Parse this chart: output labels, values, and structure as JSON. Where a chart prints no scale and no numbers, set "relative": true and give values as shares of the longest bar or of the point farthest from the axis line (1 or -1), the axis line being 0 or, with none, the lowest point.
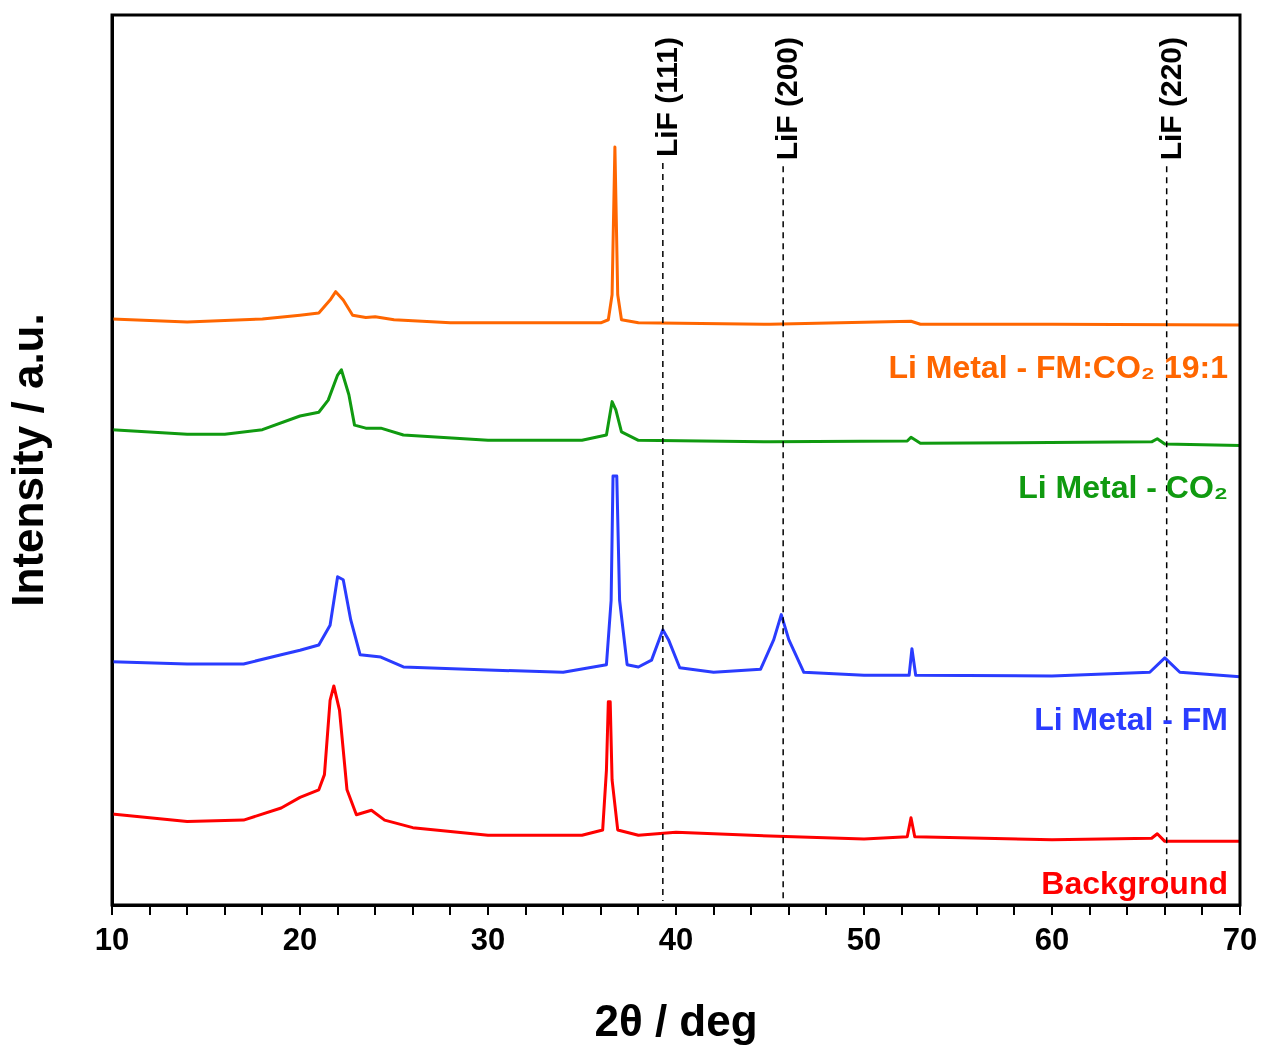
{
  "chart_data": {
    "type": "line",
    "xlabel": "2θ / deg",
    "ylabel": "Intensity / a.u.",
    "relative": true,
    "legend": false,
    "marker": "none",
    "line_style": "solid",
    "xlim": [
      10,
      70
    ],
    "xticks": [
      10,
      {
        "value": 12,
        "label": null
      },
      {
        "value": 14,
        "label": null
      },
      {
        "value": 16,
        "label": null
      },
      {
        "value": 18,
        "label": null
      },
      20,
      {
        "value": 22,
        "label": null
      },
      {
        "value": 24,
        "label": null
      },
      {
        "value": 26,
        "label": null
      },
      {
        "value": 28,
        "label": null
      },
      30,
      {
        "value": 32,
        "label": null
      },
      {
        "value": 34,
        "label": null
      },
      {
        "value": 36,
        "label": null
      },
      {
        "value": 38,
        "label": null
      },
      40,
      {
        "value": 42,
        "label": null
      },
      {
        "value": 44,
        "label": null
      },
      {
        "value": 46,
        "label": null
      },
      {
        "value": 48,
        "label": null
      },
      50,
      {
        "value": 52,
        "label": null
      },
      {
        "value": 54,
        "label": null
      },
      {
        "value": 56,
        "label": null
      },
      {
        "value": 58,
        "label": null
      },
      60,
      {
        "value": 62,
        "label": null
      },
      {
        "value": 64,
        "label": null
      },
      {
        "value": 66,
        "label": null
      },
      {
        "value": 68,
        "label": null
      },
      70
    ],
    "ref_lines": [
      {
        "axis": "x",
        "value": 39.3,
        "label": "LiF (111)",
        "color": "#000000",
        "line_style": "dashed"
      },
      {
        "axis": "x",
        "value": 45.7,
        "label": "LiF (200)",
        "color": "#000000",
        "line_style": "dashed"
      },
      {
        "axis": "x",
        "value": 66.1,
        "label": "LiF (220)",
        "color": "#000000",
        "line_style": "dashed"
      }
    ],
    "series": [
      {
        "name": "Li Metal - FM:CO₂ 19:1",
        "color": "#ff6600",
        "x": [
          10,
          14,
          18,
          20,
          21,
          21.6,
          21.9,
          22.3,
          22.8,
          23.5,
          24,
          25,
          28,
          32,
          36,
          36.4,
          36.6,
          36.75,
          36.9,
          37.1,
          38,
          45,
          52.5,
          53,
          60,
          70
        ],
        "values": [
          0.773,
          0.769,
          0.773,
          0.778,
          0.781,
          0.798,
          0.809,
          0.798,
          0.778,
          0.775,
          0.776,
          0.772,
          0.768,
          0.768,
          0.768,
          0.772,
          0.805,
          1,
          0.805,
          0.772,
          0.768,
          0.766,
          0.77,
          0.766,
          0.766,
          0.765
        ]
      },
      {
        "name": "Li Metal - CO₂",
        "color": "#109a10",
        "x": [
          10,
          14,
          16,
          18,
          20,
          21,
          21.5,
          22,
          22.2,
          22.6,
          22.9,
          23.5,
          24.3,
          25.5,
          30,
          35,
          36.3,
          36.6,
          36.8,
          37.1,
          38,
          45,
          52.3,
          52.5,
          53,
          65.3,
          65.6,
          66,
          70
        ],
        "values": [
          0.627,
          0.621,
          0.621,
          0.627,
          0.645,
          0.65,
          0.666,
          0.699,
          0.706,
          0.673,
          0.633,
          0.629,
          0.629,
          0.62,
          0.613,
          0.613,
          0.62,
          0.664,
          0.653,
          0.624,
          0.613,
          0.611,
          0.612,
          0.617,
          0.609,
          0.611,
          0.615,
          0.608,
          0.606
        ]
      },
      {
        "name": "Li Metal - FM",
        "color": "#2a3cff",
        "x": [
          10,
          14,
          17,
          19,
          20,
          21,
          21.6,
          22,
          22.3,
          22.7,
          23.2,
          24.3,
          25.5,
          30,
          34,
          36.3,
          36.55,
          36.65,
          36.85,
          37,
          37.4,
          38,
          38.7,
          39.3,
          39.6,
          40.2,
          42,
          44.5,
          45.2,
          45.6,
          46,
          46.8,
          50,
          52.4,
          52.55,
          52.75,
          60,
          65.2,
          66,
          66.8,
          70
        ],
        "values": [
          0.321,
          0.318,
          0.318,
          0.33,
          0.336,
          0.343,
          0.369,
          0.433,
          0.429,
          0.376,
          0.33,
          0.327,
          0.314,
          0.31,
          0.307,
          0.317,
          0.402,
          0.566,
          0.566,
          0.402,
          0.317,
          0.314,
          0.323,
          0.363,
          0.35,
          0.313,
          0.307,
          0.311,
          0.35,
          0.383,
          0.35,
          0.307,
          0.303,
          0.303,
          0.338,
          0.303,
          0.302,
          0.307,
          0.326,
          0.307,
          0.301
        ]
      },
      {
        "name": "Background",
        "color": "#ff0000",
        "x": [
          10,
          14,
          17,
          19,
          20,
          21,
          21.3,
          21.6,
          21.8,
          22.1,
          22.5,
          23,
          23.8,
          24.5,
          26,
          30,
          35,
          36.1,
          36.3,
          36.4,
          36.5,
          36.6,
          36.9,
          38,
          40,
          45,
          50,
          52.3,
          52.5,
          52.7,
          60,
          65.3,
          65.6,
          66,
          70
        ],
        "values": [
          0.12,
          0.11,
          0.112,
          0.128,
          0.142,
          0.152,
          0.172,
          0.27,
          0.289,
          0.257,
          0.152,
          0.119,
          0.125,
          0.112,
          0.102,
          0.092,
          0.092,
          0.099,
          0.178,
          0.268,
          0.268,
          0.165,
          0.099,
          0.092,
          0.096,
          0.091,
          0.087,
          0.09,
          0.115,
          0.09,
          0.086,
          0.088,
          0.094,
          0.084,
          0.084
        ]
      }
    ]
  }
}
